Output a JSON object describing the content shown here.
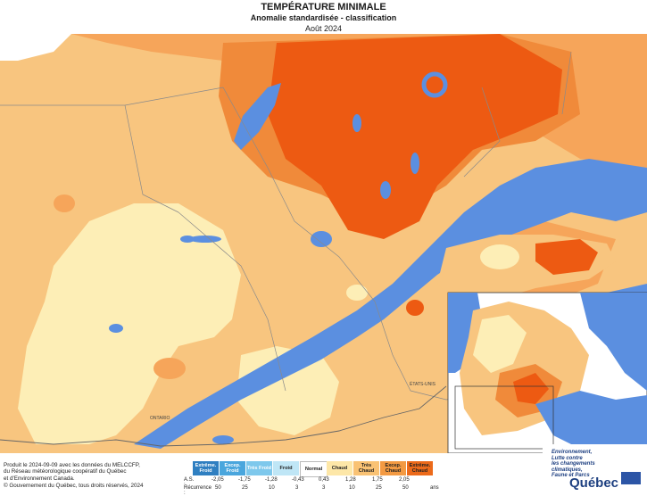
{
  "header": {
    "title": "TEMPÉRATURE MINIMALE",
    "subtitle": "Anomalie standardisée - classification",
    "period": "Août 2024"
  },
  "map_labels": {
    "usa": "ÉTATS-UNIS",
    "ontario": "ONTARIO"
  },
  "credits": {
    "line1": "Produit le 2024-09-09 avec les données du MELCCFP,",
    "line2": "du Réseau météorologique coopératif du Québec",
    "line3": "et d'Environnement Canada.",
    "copyright": "© Gouvernement du Québec, tous droits réservés, 2024"
  },
  "legend": {
    "classes": [
      {
        "label": "Extrême. Froid",
        "color": "#2f7fc1"
      },
      {
        "label": "Excep. Froid",
        "color": "#4aa6dd"
      },
      {
        "label": "Très Froid",
        "color": "#7ec8ec"
      },
      {
        "label": "Froid",
        "color": "#bfe6f6"
      },
      {
        "label": "Normal",
        "color": "#ffffff"
      },
      {
        "label": "Chaud",
        "color": "#fde7a8"
      },
      {
        "label": "Très Chaud",
        "color": "#f9c274"
      },
      {
        "label": "Excep. Chaud",
        "color": "#f39a43"
      },
      {
        "label": "Extrême. Chaud",
        "color": "#ec6a1a"
      }
    ],
    "as_label": "A.S. :",
    "as_values": [
      "-2,05",
      "-1,75",
      "-1,28",
      "-0,43",
      "0,43",
      "1,28",
      "1,75",
      "2,05"
    ],
    "recurrence_label": "Récurrence :",
    "recurrence_values": [
      "50",
      "25",
      "10",
      "3",
      "3",
      "10",
      "25",
      "50"
    ],
    "recurrence_unit": "ans"
  },
  "logo": {
    "line1": "Environnement,",
    "line2": "Lutte contre",
    "line3": "les changements",
    "line4": "climatiques,",
    "line5": "Faune et Parcs",
    "wordmark": "Québec"
  },
  "colors": {
    "water": "#5b8fe0",
    "normal_zone": "#fdeeb6",
    "warm_zone": "#f8c57f",
    "very_warm_zone": "#f6a55a",
    "exceptional_warm_zone": "#f08a3a",
    "extreme_warm_zone": "#ed5a12",
    "land_outside": "#ffffff"
  }
}
